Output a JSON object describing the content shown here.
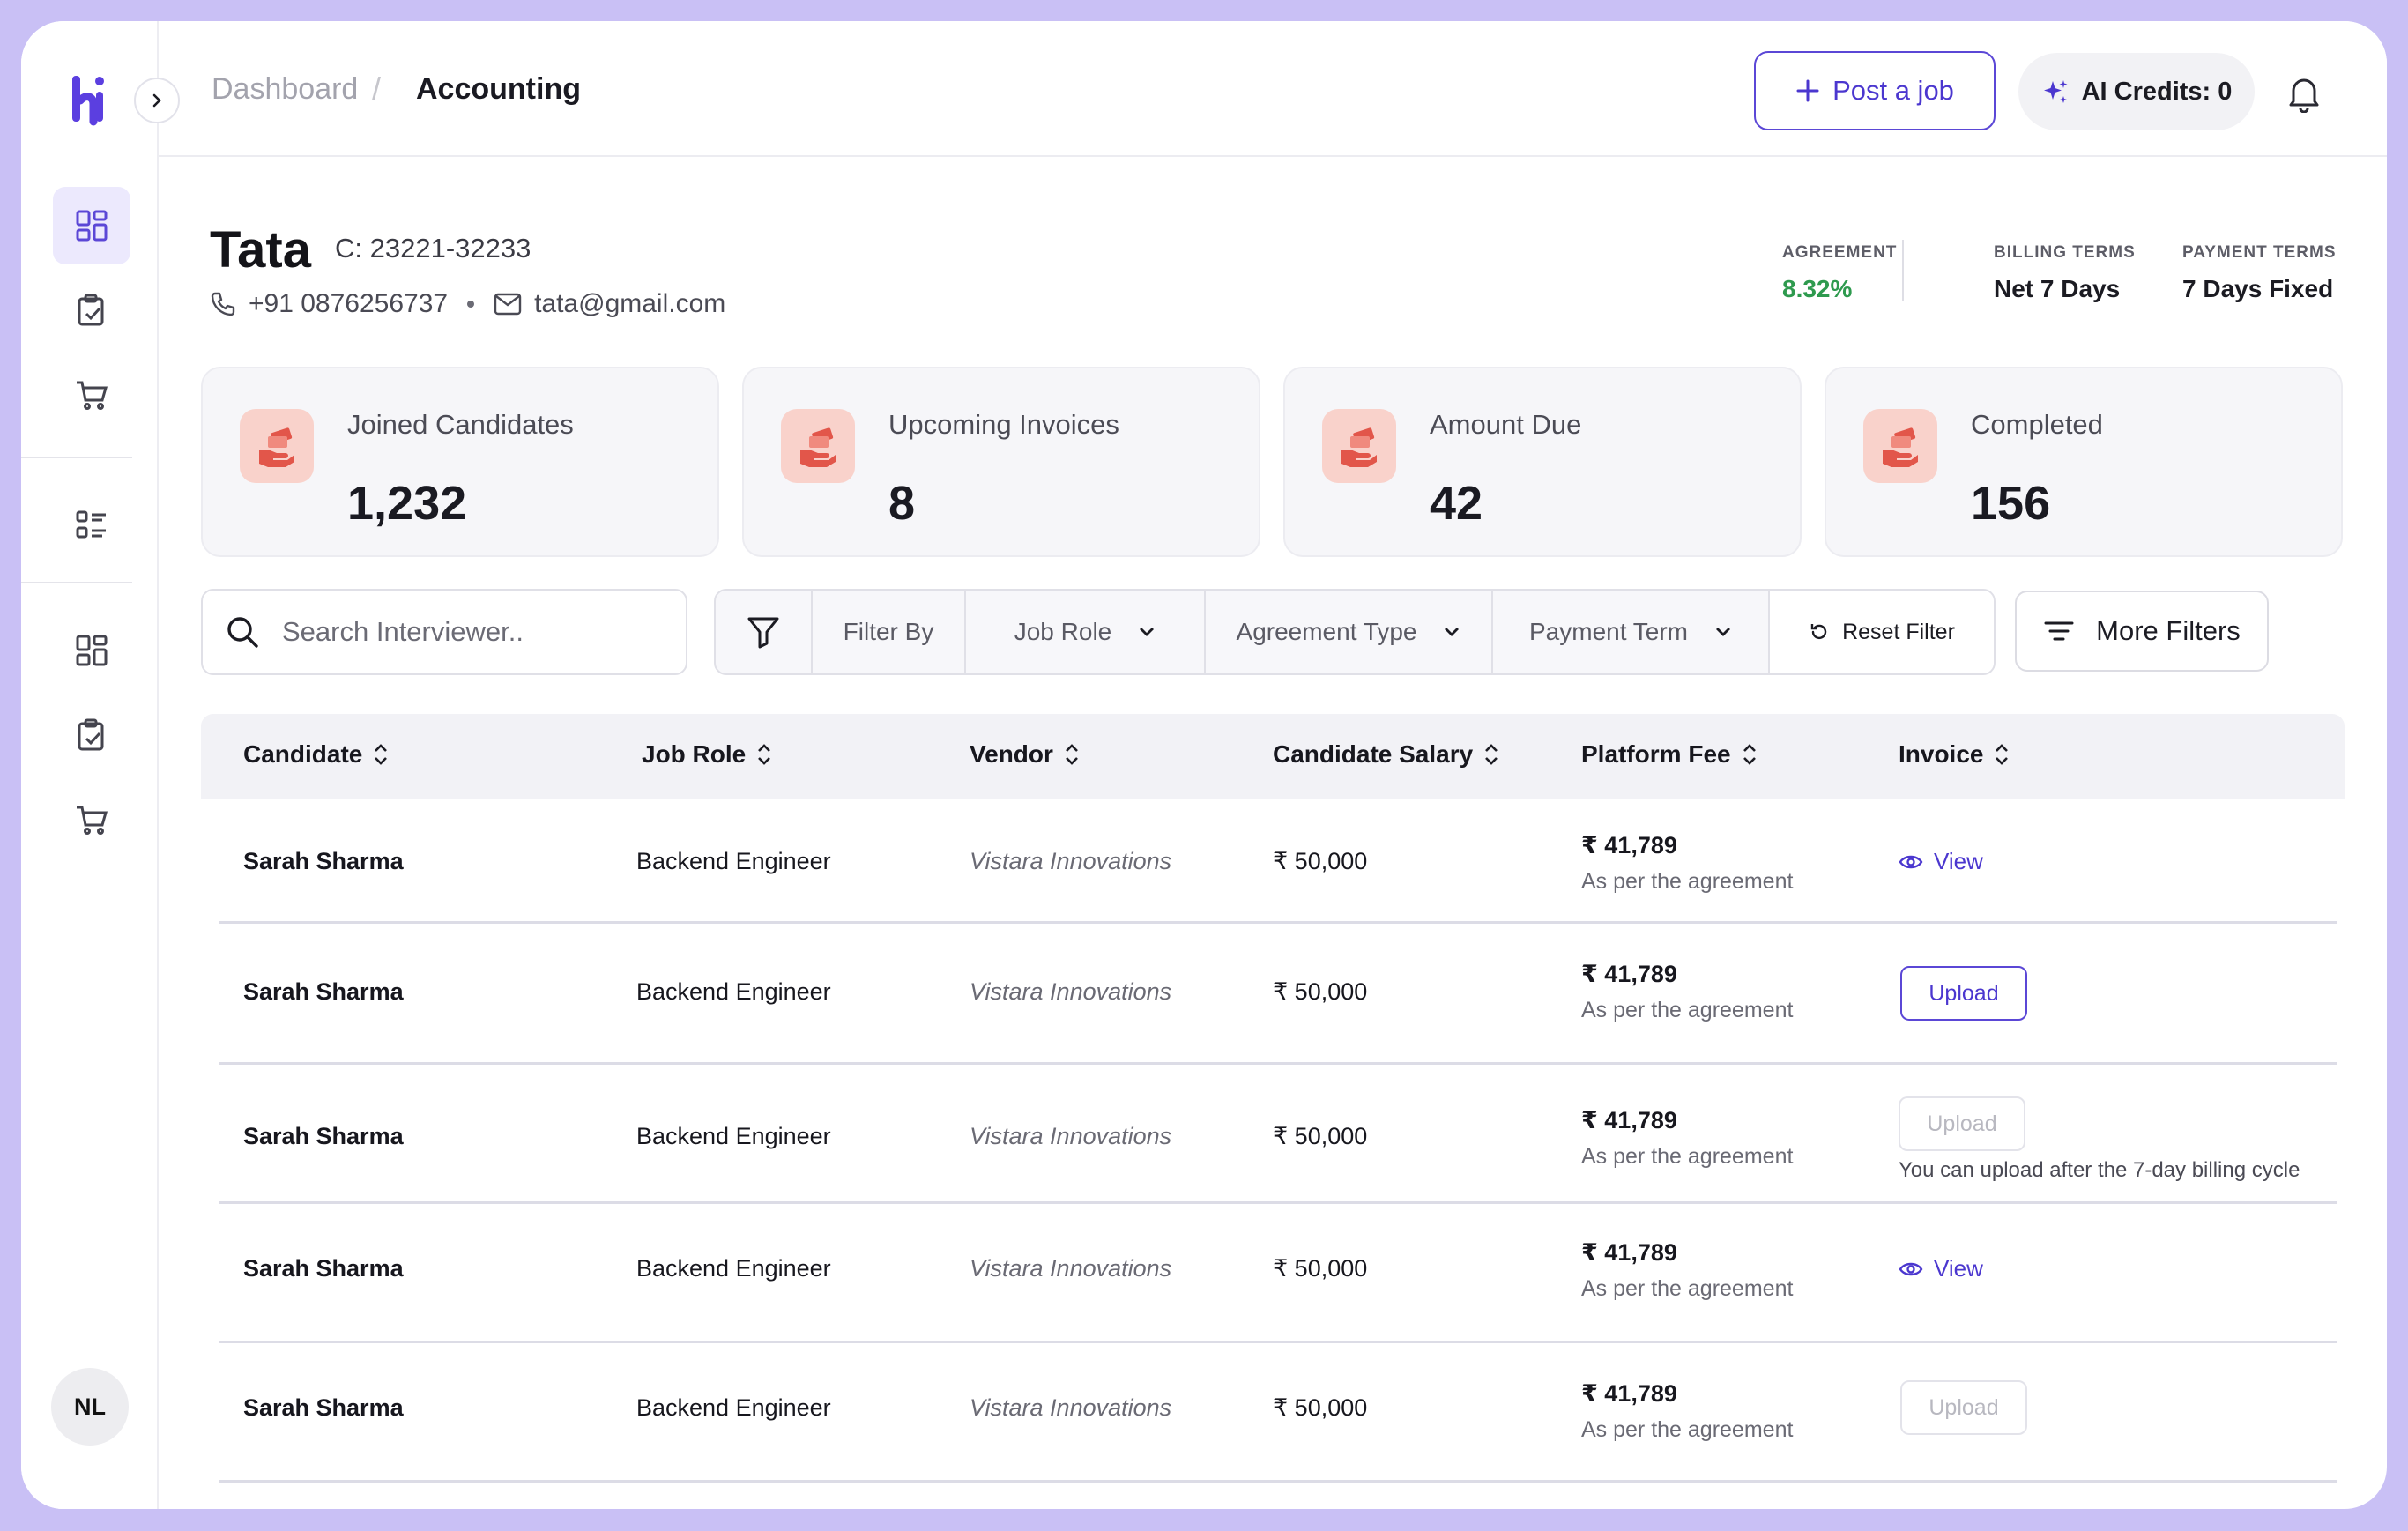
{
  "breadcrumb": {
    "parent": "Dashboard",
    "separator": "/",
    "current": "Accounting"
  },
  "header": {
    "post_job_label": "Post a job",
    "ai_credits_label": "AI Credits: 0"
  },
  "user": {
    "initials": "NL"
  },
  "company": {
    "name": "Tata",
    "code": "C: 23221-32233",
    "phone": "+91 0876256737",
    "email": "tata@gmail.com"
  },
  "terms": {
    "agreement_label": "AGREEMENT",
    "agreement_value": "8.32%",
    "billing_label": "BILLING TERMS",
    "billing_value": "Net 7 Days",
    "payment_label": "PAYMENT TERMS",
    "payment_value": "7 Days Fixed"
  },
  "stats": [
    {
      "label": "Joined Candidates",
      "value": "1,232"
    },
    {
      "label": "Upcoming Invoices",
      "value": "8"
    },
    {
      "label": "Amount Due",
      "value": "42"
    },
    {
      "label": "Completed",
      "value": "156"
    }
  ],
  "filters": {
    "search_placeholder": "Search Interviewer..",
    "filter_by": "Filter By",
    "job_role": "Job Role",
    "agreement_type": "Agreement Type",
    "payment_term": "Payment Term",
    "reset": "Reset Filter",
    "more": "More Filters"
  },
  "table": {
    "columns": [
      "Candidate",
      "Job Role",
      "Vendor",
      "Candidate Salary",
      "Platform Fee",
      "Invoice"
    ],
    "rows": [
      {
        "candidate": "Sarah Sharma",
        "role": "Backend Engineer",
        "vendor": "Vistara Innovations",
        "salary": "₹ 50,000",
        "fee": "₹ 41,789",
        "fee_note": "As per the agreement",
        "invoice": "View"
      },
      {
        "candidate": "Sarah Sharma",
        "role": "Backend Engineer",
        "vendor": "Vistara Innovations",
        "salary": "₹ 50,000",
        "fee": "₹ 41,789",
        "fee_note": "As per the agreement",
        "invoice": "Upload"
      },
      {
        "candidate": "Sarah Sharma",
        "role": "Backend Engineer",
        "vendor": "Vistara Innovations",
        "salary": "₹ 50,000",
        "fee": "₹ 41,789",
        "fee_note": "As per the agreement",
        "invoice": "Upload",
        "invoice_note": "You can upload after the 7-day billing cycle"
      },
      {
        "candidate": "Sarah Sharma",
        "role": "Backend Engineer",
        "vendor": "Vistara Innovations",
        "salary": "₹ 50,000",
        "fee": "₹ 41,789",
        "fee_note": "As per the agreement",
        "invoice": "View"
      },
      {
        "candidate": "Sarah Sharma",
        "role": "Backend Engineer",
        "vendor": "Vistara Innovations",
        "salary": "₹ 50,000",
        "fee": "₹ 41,789",
        "fee_note": "As per the agreement",
        "invoice": "Upload"
      }
    ]
  },
  "colors": {
    "accent": "#4b37cf",
    "frame": "#c9c0f5",
    "stat_icon_bg": "#f9d2cb",
    "stat_icon": "#e2564a",
    "agreement_green": "#2e9a4e"
  }
}
